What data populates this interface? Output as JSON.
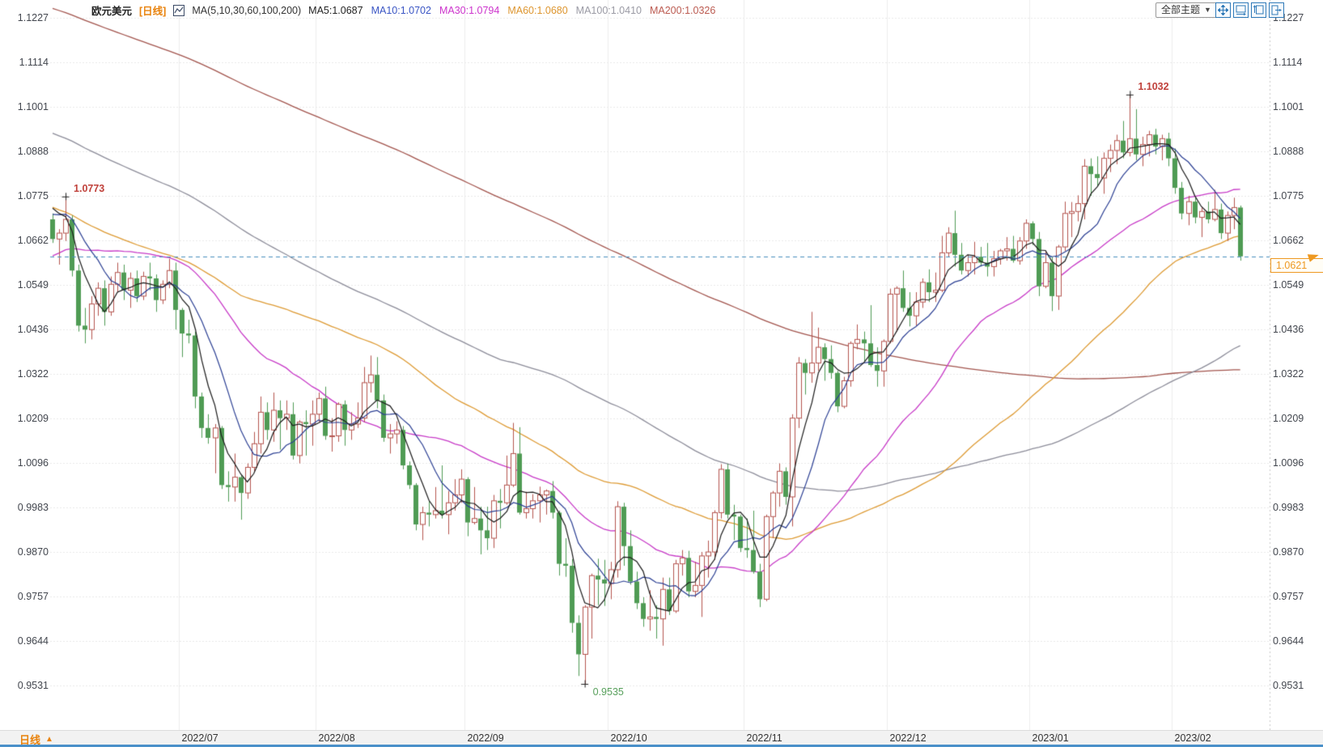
{
  "header": {
    "symbol": "欧元美元",
    "period_tag": "[日线]",
    "ma_group_label": "MA(5,10,30,60,100,200)",
    "ma_values": [
      {
        "label": "MA5:1.0687",
        "color": "#222222"
      },
      {
        "label": "MA10:1.0702",
        "color": "#3a55c4"
      },
      {
        "label": "MA30:1.0794",
        "color": "#cc33cc"
      },
      {
        "label": "MA60:1.0680",
        "color": "#dd952e"
      },
      {
        "label": "MA100:1.0410",
        "color": "#9a9aa4"
      },
      {
        "label": "MA200:1.0326",
        "color": "#bb5a50"
      }
    ]
  },
  "controls": {
    "theme_button_label": "全部主题"
  },
  "footer": {
    "period_label": "日线"
  },
  "axes": {
    "y_labels": [
      "1.1227",
      "1.1114",
      "1.1001",
      "1.0888",
      "1.0775",
      "1.0662",
      "1.0549",
      "1.0436",
      "1.0322",
      "1.0209",
      "1.0096",
      "0.9983",
      "0.9870",
      "0.9757",
      "0.9644",
      "0.9531"
    ],
    "x_labels": [
      "2022/07",
      "2022/08",
      "2022/09",
      "2022/10",
      "2022/11",
      "2022/12",
      "2023/01",
      "2023/02"
    ]
  },
  "chart_data": {
    "type": "candlestick",
    "title": "欧元美元 日线 (EUR/USD daily)",
    "y_range": [
      0.9531,
      1.1227
    ],
    "grid": true,
    "up_color": "#b4544e",
    "down_color": "#4f9b54",
    "price_line": {
      "label": "1.0621",
      "price": 1.0621,
      "color": "#ee9922",
      "line_color": "#4a8fbd"
    },
    "annotations": [
      {
        "label": "1.0773",
        "index": 2,
        "price": 1.0773,
        "type": "high",
        "color": "#c0413b"
      },
      {
        "label": "1.1032",
        "index": 166,
        "price": 1.1032,
        "type": "high",
        "color": "#c0413b"
      },
      {
        "label": "0.9535",
        "index": 82,
        "price": 0.9535,
        "type": "low",
        "color": "#58a05c"
      }
    ],
    "month_marks": [
      {
        "index": 20
      },
      {
        "index": 41
      },
      {
        "index": 64
      },
      {
        "index": 86
      },
      {
        "index": 107
      },
      {
        "index": 129
      },
      {
        "index": 151
      },
      {
        "index": 173
      }
    ],
    "ma_lines": [
      {
        "period": 200,
        "color": "#a2544d",
        "width": 1.3
      },
      {
        "period": 100,
        "color": "#8c8c99",
        "width": 1.3
      },
      {
        "period": 60,
        "color": "#dd9a33",
        "width": 1.3
      },
      {
        "period": 30,
        "color": "#c73ac7",
        "width": 1.3
      },
      {
        "period": 10,
        "color": "#2b3f93",
        "width": 1.2
      },
      {
        "period": 5,
        "color": "#1b1b1b",
        "width": 1.2
      }
    ],
    "ma_seed_segments": [
      [
        110,
        1.18,
        1.13
      ],
      [
        30,
        1.13,
        1.108
      ],
      [
        30,
        1.108,
        1.07
      ],
      [
        30,
        1.045,
        1.078
      ]
    ],
    "candles": [
      [
        1.0715,
        1.073,
        1.0655,
        1.0665
      ],
      [
        1.0665,
        1.069,
        1.06,
        1.068
      ],
      [
        1.068,
        1.0773,
        1.066,
        1.0715
      ],
      [
        1.0715,
        1.0725,
        1.057,
        1.0585
      ],
      [
        1.0585,
        1.06,
        1.043,
        1.0445
      ],
      [
        1.0445,
        1.049,
        1.04,
        1.0435
      ],
      [
        1.0435,
        1.052,
        1.041,
        1.05
      ],
      [
        1.05,
        1.0555,
        1.047,
        1.054
      ],
      [
        1.054,
        1.056,
        1.0445,
        1.048
      ],
      [
        1.048,
        1.057,
        1.047,
        1.055
      ],
      [
        1.055,
        1.0605,
        1.053,
        1.058
      ],
      [
        1.058,
        1.06,
        1.051,
        1.0535
      ],
      [
        1.0535,
        1.058,
        1.049,
        1.0565
      ],
      [
        1.0565,
        1.0585,
        1.0505,
        1.052
      ],
      [
        1.052,
        1.0582,
        1.051,
        1.057
      ],
      [
        1.057,
        1.0605,
        1.0535,
        1.0565
      ],
      [
        1.0565,
        1.0575,
        1.048,
        1.051
      ],
      [
        1.051,
        1.056,
        1.05,
        1.055
      ],
      [
        1.055,
        1.0615,
        1.054,
        1.0585
      ],
      [
        1.0585,
        1.0605,
        1.0435,
        1.0485
      ],
      [
        1.0485,
        1.049,
        1.0365,
        1.0425
      ],
      [
        1.0425,
        1.046,
        1.04,
        1.042
      ],
      [
        1.042,
        1.043,
        1.0235,
        1.0265
      ],
      [
        1.0265,
        1.0275,
        1.016,
        1.0185
      ],
      [
        1.0185,
        1.022,
        1.0145,
        1.016
      ],
      [
        1.016,
        1.0195,
        1.007,
        1.0185
      ],
      [
        1.0185,
        1.019,
        1.003,
        1.004
      ],
      [
        1.004,
        1.0075,
        0.9998,
        1.0035
      ],
      [
        1.0035,
        1.012,
        0.9998,
        1.006
      ],
      [
        1.006,
        1.0065,
        0.9952,
        1.002
      ],
      [
        1.002,
        1.0095,
        1.0005,
        1.0085
      ],
      [
        1.0085,
        1.0175,
        1.0075,
        1.0145
      ],
      [
        1.0145,
        1.0265,
        1.012,
        1.0225
      ],
      [
        1.0225,
        1.025,
        1.0155,
        1.018
      ],
      [
        1.018,
        1.0275,
        1.015,
        1.023
      ],
      [
        1.023,
        1.0255,
        1.013,
        1.021
      ],
      [
        1.021,
        1.0255,
        1.018,
        1.022
      ],
      [
        1.022,
        1.025,
        1.0105,
        1.0115
      ],
      [
        1.0115,
        1.0205,
        1.0095,
        1.02
      ],
      [
        1.02,
        1.023,
        1.0115,
        1.0195
      ],
      [
        1.0195,
        1.0255,
        1.014,
        1.022
      ],
      [
        1.022,
        1.0275,
        1.02,
        1.026
      ],
      [
        1.026,
        1.029,
        1.0155,
        1.0165
      ],
      [
        1.0165,
        1.021,
        1.0125,
        1.0165
      ],
      [
        1.0165,
        1.025,
        1.015,
        1.0245
      ],
      [
        1.0245,
        1.0255,
        1.014,
        1.018
      ],
      [
        1.018,
        1.0225,
        1.0155,
        1.0195
      ],
      [
        1.0195,
        1.025,
        1.0185,
        1.021
      ],
      [
        1.021,
        1.034,
        1.02,
        1.03
      ],
      [
        1.03,
        1.0369,
        1.0275,
        1.032
      ],
      [
        1.032,
        1.0365,
        1.0235,
        1.0255
      ],
      [
        1.0255,
        1.027,
        1.015,
        1.016
      ],
      [
        1.016,
        1.0195,
        1.012,
        1.017
      ],
      [
        1.017,
        1.0202,
        1.0145,
        1.018
      ],
      [
        1.018,
        1.019,
        1.008,
        1.009
      ],
      [
        1.009,
        1.01,
        1.003,
        1.004
      ],
      [
        1.004,
        1.0045,
        0.9925,
        0.994
      ],
      [
        0.994,
        0.9985,
        0.99,
        0.997
      ],
      [
        0.997,
        1.0,
        0.9935,
        0.9965
      ],
      [
        0.9965,
        1.0035,
        0.9955,
        0.9975
      ],
      [
        0.9975,
        1.009,
        0.9955,
        0.9965
      ],
      [
        0.9965,
        1.0025,
        0.9915,
        0.9995
      ],
      [
        0.9995,
        1.0055,
        0.9975,
        1.0015
      ],
      [
        1.0015,
        1.008,
        0.9995,
        1.0055
      ],
      [
        1.0055,
        1.006,
        0.991,
        0.9945
      ],
      [
        0.9945,
        1.0035,
        0.994,
        0.9955
      ],
      [
        0.9955,
        0.9985,
        0.9864,
        0.9925
      ],
      [
        0.9925,
        0.9985,
        0.9875,
        0.9905
      ],
      [
        0.9905,
        1.0015,
        0.988,
        1.0
      ],
      [
        1.0,
        1.003,
        0.993,
        0.9995
      ],
      [
        0.9995,
        1.0115,
        0.999,
        1.004
      ],
      [
        1.004,
        1.0198,
        1.0035,
        1.012
      ],
      [
        1.012,
        1.0187,
        0.9965,
        0.997
      ],
      [
        0.997,
        1.0023,
        0.9955,
        0.998
      ],
      [
        0.998,
        1.0017,
        0.9955,
        1.0
      ],
      [
        1.0,
        1.0036,
        0.9945,
        1.0015
      ],
      [
        1.0015,
        1.0029,
        0.9965,
        1.0025
      ],
      [
        1.0025,
        1.005,
        0.9955,
        0.997
      ],
      [
        0.997,
        0.9975,
        0.981,
        0.984
      ],
      [
        0.984,
        0.9905,
        0.9807,
        0.9835
      ],
      [
        0.9835,
        0.9852,
        0.9665,
        0.969
      ],
      [
        0.969,
        0.9709,
        0.9555,
        0.961
      ],
      [
        0.961,
        0.9735,
        0.9535,
        0.973
      ],
      [
        0.973,
        0.9815,
        0.965,
        0.981
      ],
      [
        0.981,
        0.9853,
        0.9735,
        0.98
      ],
      [
        0.98,
        0.985,
        0.9733,
        0.979
      ],
      [
        0.979,
        0.9845,
        0.975,
        0.9825
      ],
      [
        0.9825,
        0.9999,
        0.9805,
        0.9985
      ],
      [
        0.9985,
        0.9995,
        0.9835,
        0.9885
      ],
      [
        0.9885,
        0.9925,
        0.9787,
        0.9795
      ],
      [
        0.9795,
        0.982,
        0.9725,
        0.974
      ],
      [
        0.974,
        0.9755,
        0.968,
        0.97
      ],
      [
        0.97,
        0.9773,
        0.967,
        0.9705
      ],
      [
        0.9705,
        0.9735,
        0.965,
        0.97
      ],
      [
        0.97,
        0.9805,
        0.9632,
        0.9775
      ],
      [
        0.9775,
        0.9805,
        0.971,
        0.972
      ],
      [
        0.972,
        0.985,
        0.9715,
        0.984
      ],
      [
        0.984,
        0.9875,
        0.981,
        0.9855
      ],
      [
        0.9855,
        0.9873,
        0.9755,
        0.977
      ],
      [
        0.977,
        0.9845,
        0.9755,
        0.9785
      ],
      [
        0.9785,
        0.987,
        0.9705,
        0.986
      ],
      [
        0.986,
        0.9899,
        0.9805,
        0.987
      ],
      [
        0.987,
        0.9976,
        0.985,
        0.997
      ],
      [
        0.997,
        1.0093,
        0.9955,
        1.008
      ],
      [
        1.008,
        1.0094,
        0.9955,
        0.9965
      ],
      [
        0.9965,
        0.999,
        0.99,
        0.996
      ],
      [
        0.996,
        0.9965,
        0.987,
        0.988
      ],
      [
        0.988,
        0.9955,
        0.9855,
        0.9875
      ],
      [
        0.9875,
        0.9975,
        0.9815,
        0.982
      ],
      [
        0.982,
        0.984,
        0.973,
        0.975
      ],
      [
        0.975,
        0.9965,
        0.9745,
        0.996
      ],
      [
        0.996,
        1.0025,
        0.9905,
        1.002
      ],
      [
        1.002,
        1.0095,
        0.9985,
        1.0075
      ],
      [
        1.0075,
        1.0085,
        0.999,
        1.001
      ],
      [
        1.001,
        1.022,
        0.9935,
        1.021
      ],
      [
        1.021,
        1.0365,
        1.0185,
        1.035
      ],
      [
        1.035,
        1.036,
        1.027,
        1.0325
      ],
      [
        1.0325,
        1.048,
        1.03,
        1.035
      ],
      [
        1.035,
        1.044,
        1.033,
        1.039
      ],
      [
        1.039,
        1.04,
        1.0305,
        1.036
      ],
      [
        1.036,
        1.0395,
        1.031,
        1.0325
      ],
      [
        1.0325,
        1.033,
        1.0225,
        1.024
      ],
      [
        1.024,
        1.0315,
        1.0235,
        1.0305
      ],
      [
        1.0305,
        1.0405,
        1.029,
        1.04
      ],
      [
        1.04,
        1.0448,
        1.0385,
        1.041
      ],
      [
        1.041,
        1.043,
        1.0355,
        1.04
      ],
      [
        1.04,
        1.0497,
        1.034,
        1.0345
      ],
      [
        1.0345,
        1.039,
        1.029,
        1.033
      ],
      [
        1.033,
        1.041,
        1.029,
        1.0405
      ],
      [
        1.0405,
        1.0539,
        1.04,
        1.0525
      ],
      [
        1.0525,
        1.0545,
        1.043,
        1.054
      ],
      [
        1.054,
        1.0585,
        1.048,
        1.049
      ],
      [
        1.049,
        1.053,
        1.0443,
        1.047
      ],
      [
        1.047,
        1.053,
        1.0445,
        1.0505
      ],
      [
        1.0505,
        1.0565,
        1.049,
        1.0555
      ],
      [
        1.0555,
        1.0588,
        1.0505,
        1.053
      ],
      [
        1.053,
        1.058,
        1.0505,
        1.0535
      ],
      [
        1.0535,
        1.0673,
        1.053,
        1.063
      ],
      [
        1.063,
        1.0695,
        1.062,
        1.068
      ],
      [
        1.068,
        1.0737,
        1.0595,
        1.0625
      ],
      [
        1.0625,
        1.0655,
        1.0575,
        1.0585
      ],
      [
        1.0585,
        1.0625,
        1.057,
        1.0605
      ],
      [
        1.0605,
        1.0658,
        1.0575,
        1.062
      ],
      [
        1.062,
        1.0645,
        1.0595,
        1.0605
      ],
      [
        1.0605,
        1.0655,
        1.057,
        1.0595
      ],
      [
        1.0595,
        1.0635,
        1.057,
        1.0615
      ],
      [
        1.0615,
        1.064,
        1.06,
        1.0635
      ],
      [
        1.0635,
        1.067,
        1.061,
        1.064
      ],
      [
        1.064,
        1.0673,
        1.0605,
        1.061
      ],
      [
        1.061,
        1.067,
        1.06,
        1.066
      ],
      [
        1.066,
        1.0715,
        1.064,
        1.0705
      ],
      [
        1.0705,
        1.071,
        1.065,
        1.0665
      ],
      [
        1.0665,
        1.0683,
        1.052,
        1.0545
      ],
      [
        1.0545,
        1.0635,
        1.054,
        1.0605
      ],
      [
        1.0605,
        1.062,
        1.0482,
        1.052
      ],
      [
        1.052,
        1.065,
        1.0485,
        1.0645
      ],
      [
        1.0645,
        1.076,
        1.0635,
        1.073
      ],
      [
        1.073,
        1.0759,
        1.067,
        1.0735
      ],
      [
        1.0735,
        1.0776,
        1.071,
        1.0755
      ],
      [
        1.0755,
        1.0868,
        1.0715,
        1.085
      ],
      [
        1.085,
        1.087,
        1.0775,
        1.083
      ],
      [
        1.083,
        1.0875,
        1.08,
        1.082
      ],
      [
        1.082,
        1.0885,
        1.078,
        1.087
      ],
      [
        1.087,
        1.0905,
        1.0835,
        1.089
      ],
      [
        1.089,
        1.093,
        1.0855,
        1.0915
      ],
      [
        1.0915,
        1.0965,
        1.087,
        1.0885
      ],
      [
        1.0885,
        1.1032,
        1.0875,
        1.092
      ],
      [
        1.092,
        1.0995,
        1.0865,
        1.088
      ],
      [
        1.088,
        1.0925,
        1.085,
        1.0905
      ],
      [
        1.0905,
        1.094,
        1.0875,
        1.093
      ],
      [
        1.093,
        1.0945,
        1.088,
        1.09
      ],
      [
        1.09,
        1.093,
        1.0865,
        1.092
      ],
      [
        1.092,
        1.0935,
        1.085,
        1.087
      ],
      [
        1.087,
        1.0895,
        1.078,
        1.0795
      ],
      [
        1.0795,
        1.081,
        1.0715,
        1.073
      ],
      [
        1.073,
        1.0775,
        1.07,
        1.076
      ],
      [
        1.076,
        1.077,
        1.0705,
        1.072
      ],
      [
        1.072,
        1.0745,
        1.067,
        1.0735
      ],
      [
        1.0735,
        1.076,
        1.0705,
        1.0715
      ],
      [
        1.0715,
        1.079,
        1.071,
        1.074
      ],
      [
        1.074,
        1.0755,
        1.0665,
        1.068
      ],
      [
        1.068,
        1.0735,
        1.066,
        1.0725
      ],
      [
        1.0725,
        1.077,
        1.069,
        1.0745
      ],
      [
        1.0745,
        1.075,
        1.061,
        1.0621
      ]
    ]
  }
}
